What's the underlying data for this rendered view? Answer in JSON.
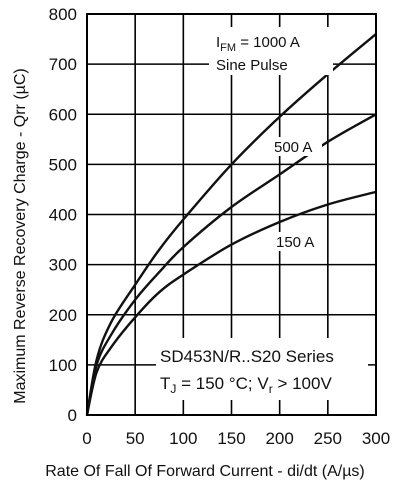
{
  "chart_data": {
    "type": "line",
    "ylabel": "Maximum Reverse Recovery Charge - Qrr (µC)",
    "xlabel": "Rate Of Fall Of Forward Current - di/dt (A/µs)",
    "xlim": [
      0,
      300
    ],
    "ylim": [
      0,
      800
    ],
    "x_ticks": [
      "0",
      "50",
      "100",
      "150",
      "200",
      "250",
      "300"
    ],
    "y_ticks": [
      "0",
      "100",
      "200",
      "300",
      "400",
      "500",
      "600",
      "700",
      "800"
    ],
    "grid": true,
    "x": [
      0,
      10,
      25,
      50,
      75,
      100,
      150,
      200,
      250,
      300
    ],
    "series": [
      {
        "name": "1000 A",
        "values": [
          0,
          110,
          185,
          260,
          330,
          390,
          500,
          595,
          680,
          760
        ]
      },
      {
        "name": "500 A",
        "values": [
          0,
          100,
          160,
          230,
          285,
          335,
          415,
          480,
          545,
          600
        ]
      },
      {
        "name": "150 A",
        "values": [
          0,
          85,
          135,
          195,
          245,
          280,
          340,
          385,
          420,
          445
        ]
      }
    ],
    "series_labels": {
      "s0_main": "I",
      "s0_sub": "FM",
      "s0_rest": " = 1000 A",
      "s0_line2": "Sine Pulse",
      "s1": "500 A",
      "s2": "150 A"
    },
    "annotation": {
      "line1": "SD453N/R..S20 Series",
      "line2_a": "T",
      "line2_sub1": "J",
      "line2_b": " = 150 °C; V",
      "line2_sub2": "r",
      "line2_c": " > 100V"
    }
  }
}
